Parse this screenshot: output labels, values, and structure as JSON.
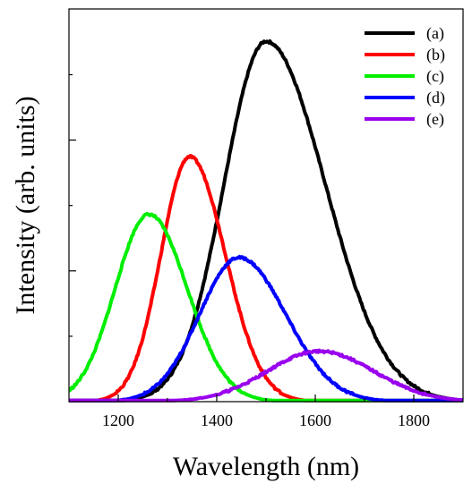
{
  "chart_data": {
    "type": "line",
    "xlabel": "Wavelength (nm)",
    "ylabel": "Intensity (arb. units)",
    "xlim": [
      1100,
      1900
    ],
    "ylim": [
      0,
      1.09
    ],
    "x_ticks": [
      1200,
      1400,
      1600,
      1800
    ],
    "y_ticks_labeled": false,
    "grid": false,
    "legend_position": "top-right",
    "series": [
      {
        "name": "(a)",
        "color": "#000000",
        "peak_x": 1500,
        "peak_y": 1.0,
        "sigma_left": 85,
        "sigma_right": 120
      },
      {
        "name": "(b)",
        "color": "#ff0000",
        "peak_x": 1345,
        "peak_y": 0.68,
        "sigma_left": 58,
        "sigma_right": 72
      },
      {
        "name": "(c)",
        "color": "#00ee00",
        "peak_x": 1262,
        "peak_y": 0.52,
        "sigma_left": 68,
        "sigma_right": 78
      },
      {
        "name": "(d)",
        "color": "#0000ff",
        "peak_x": 1445,
        "peak_y": 0.4,
        "sigma_left": 80,
        "sigma_right": 95
      },
      {
        "name": "(e)",
        "color": "#9900ee",
        "peak_x": 1608,
        "peak_y": 0.14,
        "sigma_left": 105,
        "sigma_right": 110
      }
    ]
  }
}
